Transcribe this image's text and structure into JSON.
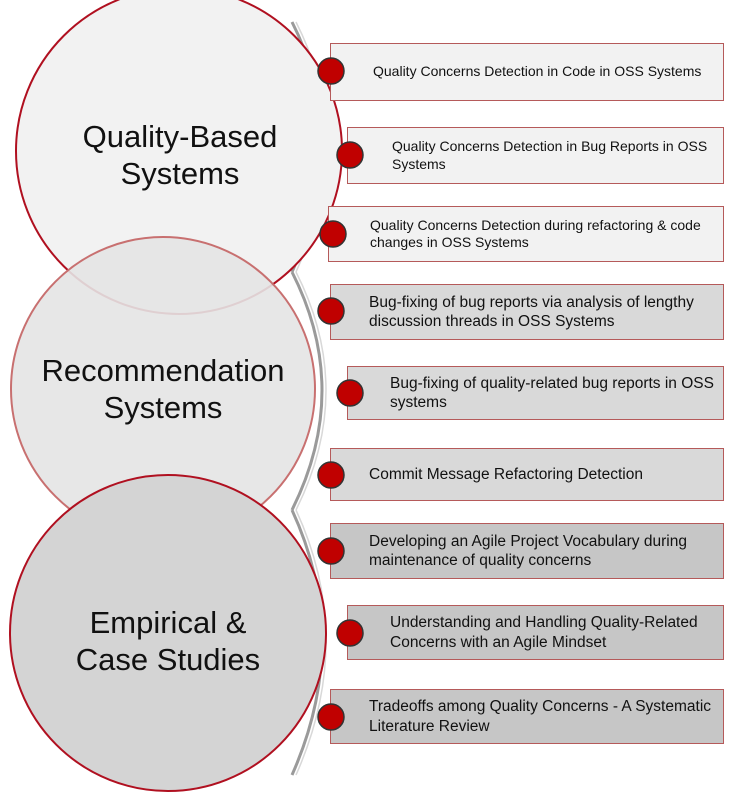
{
  "categories": [
    {
      "label": "Quality-Based Systems",
      "line1": "Quality-Based",
      "line2": "Systems",
      "fill": "#f2f2f2"
    },
    {
      "label": "Recommendation Systems",
      "line1": "Recommendation",
      "line2": "Systems",
      "fill": "#e4e4e4"
    },
    {
      "label": "Empirical & Case Studies",
      "line1": "Empirical &",
      "line2": "Case Studies",
      "fill": "#d4d4d4"
    }
  ],
  "items": [
    {
      "text": "Quality Concerns Detection in Code in OSS Systems",
      "fill": "#f2f2f2"
    },
    {
      "text": "Quality Concerns Detection in Bug Reports in OSS Systems",
      "fill": "#f2f2f2"
    },
    {
      "text": "Quality Concerns Detection  during refactoring & code changes in OSS Systems",
      "fill": "#f2f2f2"
    },
    {
      "text": "Bug-fixing of bug reports via analysis of lengthy discussion threads in OSS Systems",
      "fill": "#d9d9d9"
    },
    {
      "text": "Bug-fixing of  quality-related bug reports in OSS systems",
      "fill": "#d9d9d9"
    },
    {
      "text": "Commit Message Refactoring Detection",
      "fill": "#d9d9d9"
    },
    {
      "text": "Developing an Agile Project Vocabulary during maintenance of quality concerns",
      "fill": "#c6c6c6"
    },
    {
      "text": "Understanding and Handling Quality-Related Concerns  with an Agile Mindset",
      "fill": "#c6c6c6"
    },
    {
      "text": "Tradeoffs among Quality Concerns - A Systematic Literature Review",
      "fill": "#c6c6c6"
    }
  ],
  "colors": {
    "accent": "#c00000",
    "circle_border": "#b01020",
    "box_border": "#b55a5a",
    "connector": "#9a9a9a"
  }
}
